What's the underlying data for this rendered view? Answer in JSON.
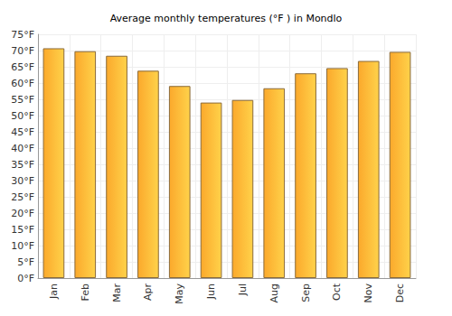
{
  "chart_data": {
    "type": "bar",
    "title": "Average monthly temperatures (°F ) in Mondlo",
    "categories": [
      "Jan",
      "Feb",
      "Mar",
      "Apr",
      "May",
      "Jun",
      "Jul",
      "Aug",
      "Sep",
      "Oct",
      "Nov",
      "Dec"
    ],
    "values": [
      70.7,
      69.8,
      68.4,
      63.8,
      59.1,
      54.0,
      54.8,
      58.4,
      63.0,
      64.6,
      66.8,
      69.6
    ],
    "color": "#fba92c",
    "ylim": [
      0,
      75
    ],
    "yticks": [
      {
        "value": 0,
        "label": "0°F"
      },
      {
        "value": 5,
        "label": "5°F"
      },
      {
        "value": 10,
        "label": "10°F"
      },
      {
        "value": 15,
        "label": "15°F"
      },
      {
        "value": 20,
        "label": "20°F"
      },
      {
        "value": 25,
        "label": "25°F"
      },
      {
        "value": 30,
        "label": "30°F"
      },
      {
        "value": 35,
        "label": "35°F"
      },
      {
        "value": 40,
        "label": "40°F"
      },
      {
        "value": 45,
        "label": "45°F"
      },
      {
        "value": 50,
        "label": "50°F"
      },
      {
        "value": 55,
        "label": "55°F"
      },
      {
        "value": 60,
        "label": "60°F"
      },
      {
        "value": 65,
        "label": "65°F"
      },
      {
        "value": 70,
        "label": "70°F"
      },
      {
        "value": 75,
        "label": "75°F"
      }
    ],
    "grid": true
  }
}
